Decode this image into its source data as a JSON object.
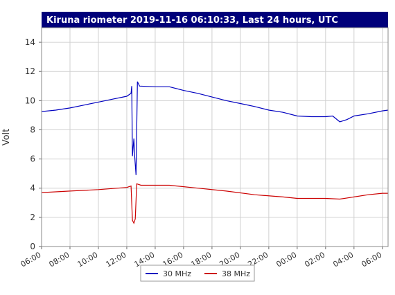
{
  "chart_data": {
    "type": "line",
    "title": "Kiruna riometer 2019-11-16 06:10:33, Last 24 hours, UTC",
    "y_label": "Volt",
    "xlim": [
      0,
      24.4
    ],
    "ylim": [
      0,
      15
    ],
    "xticks": [
      {
        "value": 0,
        "label": "06:00"
      },
      {
        "value": 2,
        "label": "08:00"
      },
      {
        "value": 4,
        "label": "10:00"
      },
      {
        "value": 6,
        "label": "12:00"
      },
      {
        "value": 8,
        "label": "14:00"
      },
      {
        "value": 10,
        "label": "16:00"
      },
      {
        "value": 12,
        "label": "18:00"
      },
      {
        "value": 14,
        "label": "20:00"
      },
      {
        "value": 16,
        "label": "22:00"
      },
      {
        "value": 18,
        "label": "00:00"
      },
      {
        "value": 20,
        "label": "02:00"
      },
      {
        "value": 22,
        "label": "04:00"
      },
      {
        "value": 24,
        "label": "06:00"
      }
    ],
    "yticks": [
      0,
      2,
      4,
      6,
      8,
      10,
      12,
      14
    ],
    "grid": true,
    "series": [
      {
        "name": "30 MHz",
        "color": "#0000c0",
        "x": [
          0,
          1,
          2,
          3,
          4,
          5,
          6,
          6.3,
          6.35,
          6.4,
          6.5,
          6.55,
          6.65,
          6.75,
          6.9,
          8,
          9,
          10,
          11,
          12,
          13,
          14,
          15,
          16,
          17,
          18,
          19,
          20,
          20.5,
          21,
          21.5,
          22,
          23,
          24,
          24.4
        ],
        "values": [
          9.25,
          9.35,
          9.5,
          9.7,
          9.9,
          10.1,
          10.3,
          10.5,
          11.0,
          6.2,
          7.4,
          6.3,
          4.9,
          11.3,
          11.0,
          10.95,
          10.95,
          10.7,
          10.5,
          10.25,
          10.0,
          9.8,
          9.6,
          9.35,
          9.2,
          8.95,
          8.9,
          8.9,
          8.95,
          8.55,
          8.7,
          8.95,
          9.1,
          9.3,
          9.35
        ]
      },
      {
        "name": "38 MHz",
        "color": "#cc0000",
        "x": [
          0,
          2,
          4,
          6,
          6.3,
          6.4,
          6.5,
          6.6,
          6.7,
          7,
          9,
          11,
          13,
          15,
          17,
          18,
          19,
          20,
          21,
          22,
          23,
          24,
          24.4
        ],
        "values": [
          3.7,
          3.8,
          3.9,
          4.05,
          4.15,
          1.8,
          1.6,
          1.9,
          4.3,
          4.2,
          4.2,
          4.0,
          3.8,
          3.55,
          3.4,
          3.3,
          3.3,
          3.3,
          3.25,
          3.4,
          3.55,
          3.65,
          3.65
        ]
      }
    ]
  }
}
